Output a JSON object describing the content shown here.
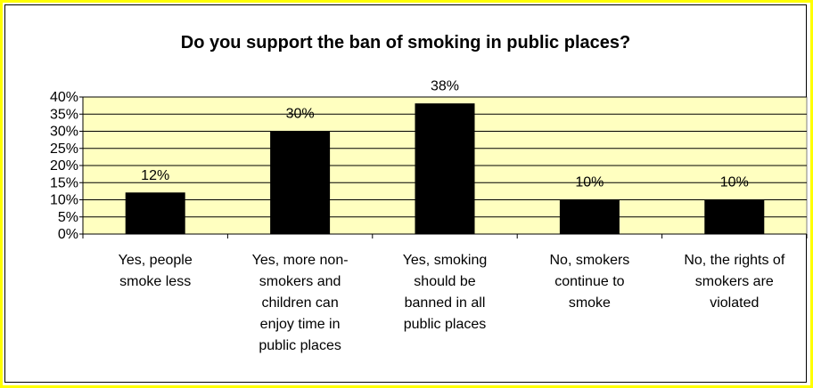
{
  "chart_data": {
    "type": "bar",
    "title": "Do you support the ban of smoking in public places?",
    "categories": [
      [
        "Yes, people",
        "smoke less"
      ],
      [
        "Yes, more non-",
        "smokers and",
        "children can",
        "enjoy time in",
        "public places"
      ],
      [
        "Yes, smoking",
        "should be",
        "banned in all",
        "public places"
      ],
      [
        "No, smokers",
        "continue to",
        "smoke"
      ],
      [
        "No, the rights of",
        "smokers are",
        "violated"
      ]
    ],
    "values": [
      12,
      30,
      38,
      10,
      10
    ],
    "data_labels": [
      "12%",
      "30%",
      "38%",
      "10%",
      "10%"
    ],
    "y_ticks": [
      "0%",
      "5%",
      "10%",
      "15%",
      "20%",
      "25%",
      "30%",
      "35%",
      "40%"
    ],
    "ylim": [
      0,
      40
    ],
    "grid": true,
    "legend": "none",
    "colors": {
      "plot_background": "#ffffc0",
      "bar": "#000000",
      "border": "#ffff00"
    }
  }
}
